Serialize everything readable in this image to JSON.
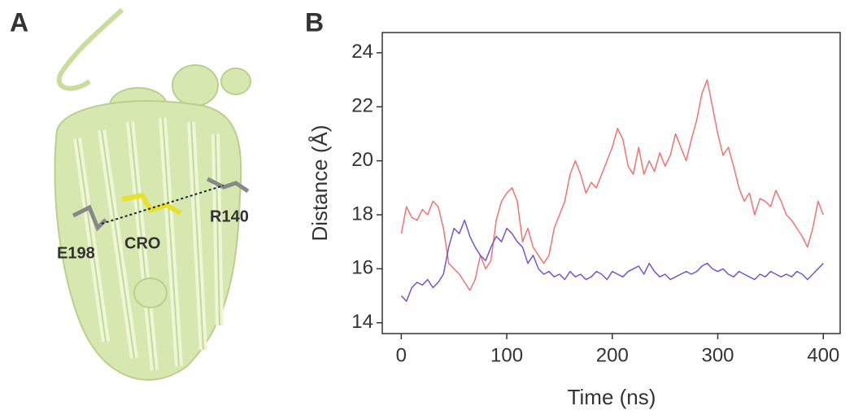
{
  "panel_labels": [
    "A",
    "B"
  ],
  "structure_labels": [
    "E198",
    "CRO",
    "R140"
  ],
  "chart_data": {
    "type": "line",
    "xlabel": "Time (ns)",
    "ylabel": "Distance  (Å)",
    "xlim": [
      -18,
      416
    ],
    "ylim": [
      13.6,
      24.75
    ],
    "xticks": [
      0,
      100,
      200,
      300,
      400
    ],
    "yticks": [
      14,
      16,
      18,
      20,
      22,
      24
    ],
    "x": [
      0,
      5,
      10,
      15,
      20,
      25,
      30,
      35,
      40,
      45,
      50,
      55,
      60,
      65,
      70,
      75,
      80,
      85,
      90,
      95,
      100,
      105,
      110,
      115,
      120,
      125,
      130,
      135,
      140,
      145,
      150,
      155,
      160,
      165,
      170,
      175,
      180,
      185,
      190,
      195,
      200,
      205,
      210,
      215,
      220,
      225,
      230,
      235,
      240,
      245,
      250,
      255,
      260,
      265,
      270,
      275,
      280,
      285,
      290,
      295,
      300,
      305,
      310,
      315,
      320,
      325,
      330,
      335,
      340,
      345,
      350,
      355,
      360,
      365,
      370,
      375,
      380,
      385,
      390,
      395,
      400
    ],
    "series": [
      {
        "color": "#f07373",
        "values": [
          17.3,
          18.3,
          17.9,
          17.8,
          18.2,
          18.0,
          18.5,
          18.3,
          17.5,
          16.2,
          16.0,
          15.8,
          15.5,
          15.2,
          15.6,
          16.5,
          16.0,
          16.3,
          17.8,
          18.5,
          18.8,
          19.0,
          18.5,
          17.0,
          17.5,
          16.8,
          16.5,
          16.2,
          16.5,
          17.5,
          18.0,
          18.5,
          19.5,
          20.0,
          19.5,
          18.8,
          19.2,
          19.0,
          19.5,
          20.0,
          20.5,
          21.2,
          20.8,
          19.8,
          19.5,
          20.5,
          19.5,
          20.0,
          19.6,
          20.3,
          19.8,
          20.2,
          21.0,
          20.5,
          20.0,
          20.8,
          21.5,
          22.5,
          23.0,
          22.0,
          21.0,
          20.2,
          20.5,
          19.8,
          19.0,
          18.5,
          18.8,
          18.0,
          18.6,
          18.5,
          18.3,
          18.9,
          18.5,
          18.0,
          17.8,
          17.5,
          17.2,
          16.8,
          17.5,
          18.5,
          18.0
        ]
      },
      {
        "color": "#6a5acd",
        "values": [
          15.0,
          14.8,
          15.3,
          15.5,
          15.4,
          15.6,
          15.3,
          15.5,
          15.8,
          16.8,
          17.5,
          17.3,
          17.8,
          17.2,
          16.8,
          16.5,
          16.3,
          16.8,
          17.2,
          17.0,
          17.5,
          17.3,
          17.0,
          16.8,
          16.2,
          16.5,
          16.0,
          15.8,
          15.9,
          15.7,
          15.8,
          15.6,
          15.9,
          15.7,
          15.8,
          15.6,
          15.7,
          15.9,
          15.8,
          15.6,
          15.9,
          15.8,
          15.7,
          15.9,
          16.0,
          16.1,
          15.8,
          16.2,
          15.9,
          15.7,
          15.8,
          15.6,
          15.7,
          15.8,
          15.9,
          15.8,
          15.9,
          16.1,
          16.2,
          16.0,
          15.9,
          16.0,
          15.8,
          15.7,
          15.9,
          15.8,
          15.7,
          15.6,
          15.8,
          15.7,
          15.9,
          15.8,
          15.7,
          15.8,
          15.7,
          15.9,
          15.8,
          15.6,
          15.8,
          16.0,
          16.2
        ]
      }
    ]
  }
}
